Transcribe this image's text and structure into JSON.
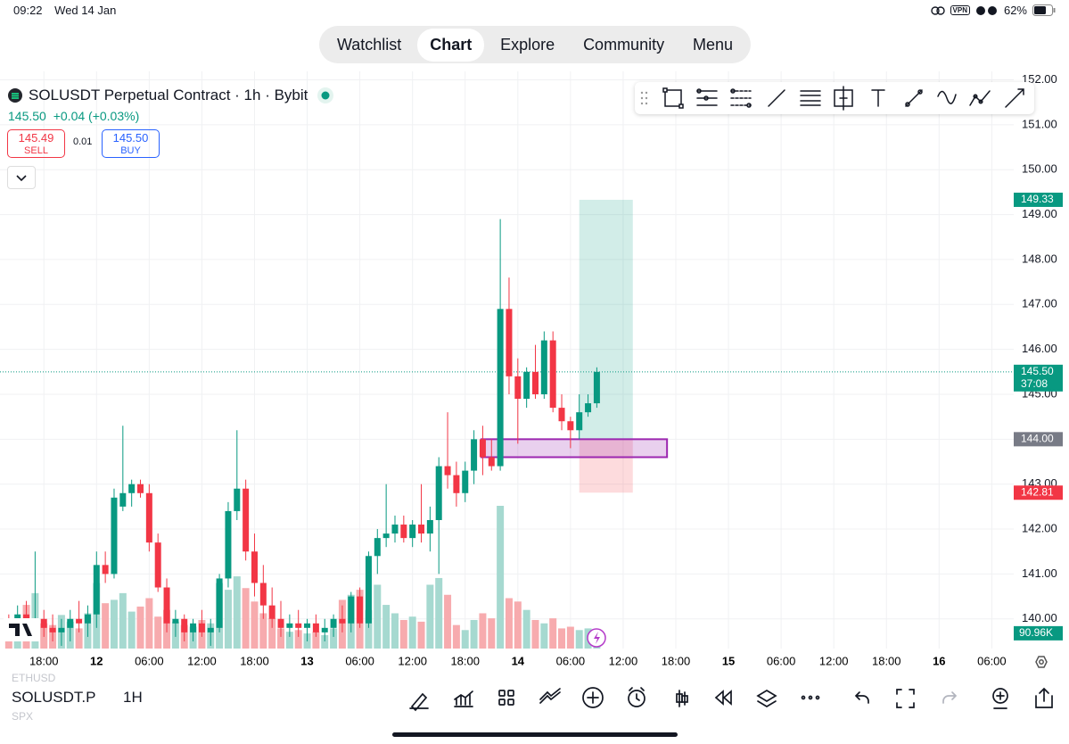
{
  "status_bar": {
    "time": "09:22",
    "date": "Wed 14 Jan",
    "vpn": "VPN",
    "battery": "62%"
  },
  "nav": {
    "tabs": [
      "Watchlist",
      "Chart",
      "Explore",
      "Community",
      "Menu"
    ],
    "active": 1
  },
  "symbol_header": {
    "title": "SOLUSDT Perpetual Contract · 1h · Bybit",
    "price": "145.50",
    "change": "+0.04 (+0.03%)",
    "sell_price": "145.49",
    "sell_label": "SELL",
    "spread": "0.01",
    "buy_price": "145.50",
    "buy_label": "BUY"
  },
  "chart_data": {
    "type": "candlestick",
    "up_color": "#089981",
    "down_color": "#f23645",
    "grid": true,
    "open": [
      139.9,
      139.8,
      140.1,
      139.9,
      140.0,
      139.8,
      139.7,
      139.8,
      140.0,
      139.9,
      140.1,
      141.2,
      141.0,
      142.5,
      142.8,
      143.0,
      142.8,
      141.7,
      140.7,
      139.9,
      140.0,
      139.7,
      139.9,
      139.7,
      139.8,
      140.9,
      142.4,
      142.9,
      141.5,
      140.8,
      140.3,
      140.0,
      139.8,
      139.9,
      139.8,
      139.9,
      139.7,
      139.8,
      140.0,
      139.9,
      140.5,
      139.9,
      141.4,
      141.8,
      141.9,
      142.1,
      141.8,
      142.1,
      141.9,
      142.2,
      143.4,
      143.2,
      142.8,
      143.3,
      144.0,
      143.6,
      143.4,
      146.9,
      145.4,
      144.9,
      145.5,
      145.0,
      146.2,
      144.7,
      144.4,
      144.2,
      144.6,
      144.8
    ],
    "high": [
      140.1,
      140.3,
      140.4,
      141.5,
      140.2,
      140.1,
      140.0,
      140.2,
      140.4,
      140.3,
      141.5,
      141.5,
      142.9,
      144.3,
      143.1,
      143.1,
      143.0,
      141.9,
      140.9,
      140.2,
      140.1,
      140.0,
      140.2,
      140.0,
      141.0,
      142.6,
      144.2,
      143.1,
      141.9,
      141.2,
      140.7,
      140.4,
      140.1,
      140.2,
      140.0,
      140.1,
      140.0,
      140.1,
      140.3,
      140.6,
      140.7,
      141.5,
      142.0,
      143.0,
      142.3,
      142.3,
      142.2,
      143.0,
      142.5,
      143.6,
      144.6,
      143.5,
      143.5,
      144.2,
      144.3,
      144.0,
      148.9,
      147.6,
      145.8,
      145.6,
      146.1,
      146.4,
      146.4,
      145.0,
      144.5,
      145.0,
      145.0,
      145.6
    ],
    "low": [
      139.6,
      139.6,
      139.7,
      139.7,
      139.6,
      139.5,
      139.4,
      139.5,
      139.7,
      139.6,
      139.8,
      140.8,
      140.9,
      142.4,
      142.5,
      142.7,
      141.5,
      140.6,
      139.7,
      139.6,
      139.5,
      139.5,
      139.6,
      139.4,
      139.7,
      140.7,
      142.2,
      141.3,
      140.5,
      140.0,
      139.8,
      139.6,
      139.6,
      139.6,
      139.5,
      139.6,
      139.5,
      139.6,
      139.7,
      139.7,
      139.8,
      139.8,
      141.0,
      141.6,
      141.7,
      141.7,
      141.6,
      141.7,
      141.5,
      141.0,
      142.9,
      142.5,
      142.6,
      143.0,
      143.2,
      143.3,
      143.3,
      145.0,
      143.9,
      144.7,
      144.9,
      144.9,
      144.6,
      144.2,
      143.8,
      144.0,
      144.5,
      144.7
    ],
    "close": [
      139.8,
      140.1,
      139.9,
      140.0,
      139.8,
      139.7,
      139.8,
      140.0,
      139.9,
      140.1,
      141.2,
      141.0,
      142.7,
      142.8,
      143.0,
      142.8,
      141.7,
      140.7,
      139.9,
      140.0,
      139.7,
      139.9,
      139.7,
      139.8,
      140.9,
      142.4,
      142.9,
      141.5,
      140.8,
      140.3,
      140.0,
      139.8,
      139.9,
      139.8,
      139.9,
      139.7,
      139.8,
      140.0,
      139.9,
      140.5,
      139.9,
      141.4,
      141.8,
      141.9,
      142.1,
      141.8,
      142.1,
      141.9,
      142.2,
      143.4,
      143.2,
      142.8,
      143.3,
      144.0,
      143.6,
      143.4,
      146.9,
      145.4,
      144.9,
      145.5,
      145.0,
      146.2,
      144.7,
      144.4,
      144.2,
      144.6,
      144.8,
      145.5
    ],
    "volume": {
      "values": [
        180,
        120,
        260,
        330,
        150,
        140,
        200,
        160,
        120,
        210,
        390,
        270,
        290,
        330,
        220,
        250,
        300,
        190,
        230,
        160,
        140,
        130,
        170,
        150,
        390,
        350,
        430,
        360,
        280,
        210,
        180,
        120,
        100,
        110,
        90,
        100,
        80,
        120,
        290,
        320,
        350,
        230,
        380,
        260,
        210,
        170,
        190,
        160,
        380,
        420,
        320,
        140,
        110,
        170,
        210,
        180,
        850,
        300,
        280,
        230,
        170,
        150,
        180,
        120,
        130,
        110,
        120,
        90.96
      ],
      "label": "90.96K",
      "up_color": "#a6d9d0",
      "down_color": "#f7abae"
    },
    "ylim": [
      139.34,
      152.03
    ],
    "yticks": [
      {
        "value": 140,
        "label": "140.00"
      },
      {
        "value": 141,
        "label": "141.00"
      },
      {
        "value": 142,
        "label": "142.00"
      },
      {
        "value": 143,
        "label": "143.00"
      },
      {
        "value": 144,
        "label": "144.00"
      },
      {
        "value": 145,
        "label": "145.00"
      },
      {
        "value": 146,
        "label": "146.00"
      },
      {
        "value": 147,
        "label": "147.00"
      },
      {
        "value": 148,
        "label": "148.00"
      },
      {
        "value": 149,
        "label": "149.00"
      },
      {
        "value": 150,
        "label": "150.00"
      },
      {
        "value": 151,
        "label": "151.00"
      },
      {
        "value": 152,
        "label": "152.00"
      }
    ],
    "xlim": [
      -1,
      114.5
    ],
    "xticks": [
      {
        "value": 4,
        "label": "18:00"
      },
      {
        "value": 10,
        "label": "12"
      },
      {
        "value": 16,
        "label": "06:00"
      },
      {
        "value": 22,
        "label": "12:00"
      },
      {
        "value": 28,
        "label": "18:00"
      },
      {
        "value": 34,
        "label": "13"
      },
      {
        "value": 40,
        "label": "06:00"
      },
      {
        "value": 46,
        "label": "12:00"
      },
      {
        "value": 52,
        "label": "18:00"
      },
      {
        "value": 58,
        "label": "14"
      },
      {
        "value": 64,
        "label": "06:00"
      },
      {
        "value": 70,
        "label": "12:00"
      },
      {
        "value": 76,
        "label": "18:00"
      },
      {
        "value": 82,
        "label": "15"
      },
      {
        "value": 88,
        "label": "06:00"
      },
      {
        "value": 94,
        "label": "12:00"
      },
      {
        "value": 100,
        "label": "18:00"
      },
      {
        "value": 106,
        "label": "16"
      },
      {
        "value": 112,
        "label": "06:00"
      }
    ],
    "last_price": {
      "value": 145.5,
      "label": "145.50",
      "countdown": "37:08"
    },
    "position": {
      "start": 65,
      "end": 71.1,
      "profit_color": "#089981",
      "loss_color": "#f23645",
      "target": {
        "value": 149.33,
        "label": "149.33"
      },
      "entry": {
        "value": 144,
        "label": "144.00"
      },
      "stop": {
        "value": 142.81,
        "label": "142.81"
      }
    },
    "zone": {
      "low": 143.6,
      "high": 144.0,
      "start": 53.85,
      "end": 75,
      "color": "#9c27b0"
    }
  },
  "bottom_bar": {
    "symbol": "SOLUSDT.P",
    "interval": "1H",
    "watch_symbols": [
      "ETHUSD",
      "SPX"
    ]
  }
}
